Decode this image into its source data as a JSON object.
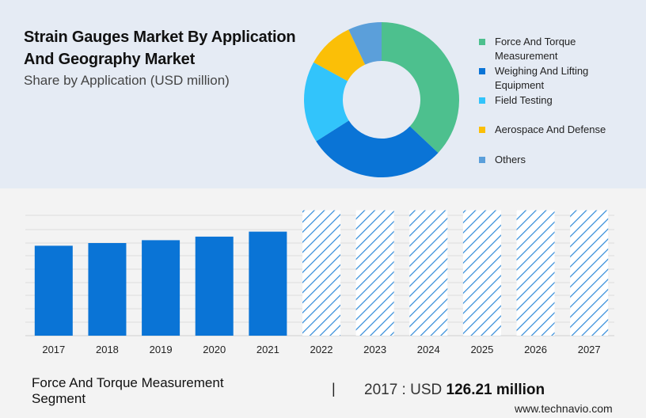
{
  "header": {
    "title": "Strain Gauges Market By Application And Geography Market",
    "subtitle": "Share by Application (USD million)"
  },
  "footer": {
    "segment": "Force And Torque Measurement Segment",
    "separator": "|",
    "value_prefix": "2017 : USD ",
    "value_bold": "126.21 million",
    "brand": "www.technavio.com"
  },
  "chart_data": [
    {
      "type": "pie",
      "donut": true,
      "title": "",
      "legend_position": "right",
      "slices": [
        {
          "label": "Force And Torque Measurement",
          "value": 37,
          "color": "#4dc08e"
        },
        {
          "label": "Weighing And Lifting Equipment",
          "value": 29,
          "color": "#0a74d6"
        },
        {
          "label": "Field Testing",
          "value": 17,
          "color": "#32c4fb"
        },
        {
          "label": "Aerospace And Defense",
          "value": 10,
          "color": "#fbbf07"
        },
        {
          "label": "Others",
          "value": 7,
          "color": "#5b9fda"
        }
      ]
    },
    {
      "type": "bar",
      "title": "",
      "xlabel": "",
      "ylabel": "",
      "grid": true,
      "categories": [
        "2017",
        "2018",
        "2019",
        "2020",
        "2021",
        "2022",
        "2023",
        "2024",
        "2025",
        "2026",
        "2027"
      ],
      "values": [
        126.21,
        130,
        134,
        139,
        146,
        176,
        176,
        176,
        176,
        176,
        176
      ],
      "forecast_from": "2022",
      "ylim": [
        0,
        190
      ],
      "colors": {
        "actual": "#0a74d6",
        "forecast_hatch": "#2f8ad9"
      }
    }
  ]
}
